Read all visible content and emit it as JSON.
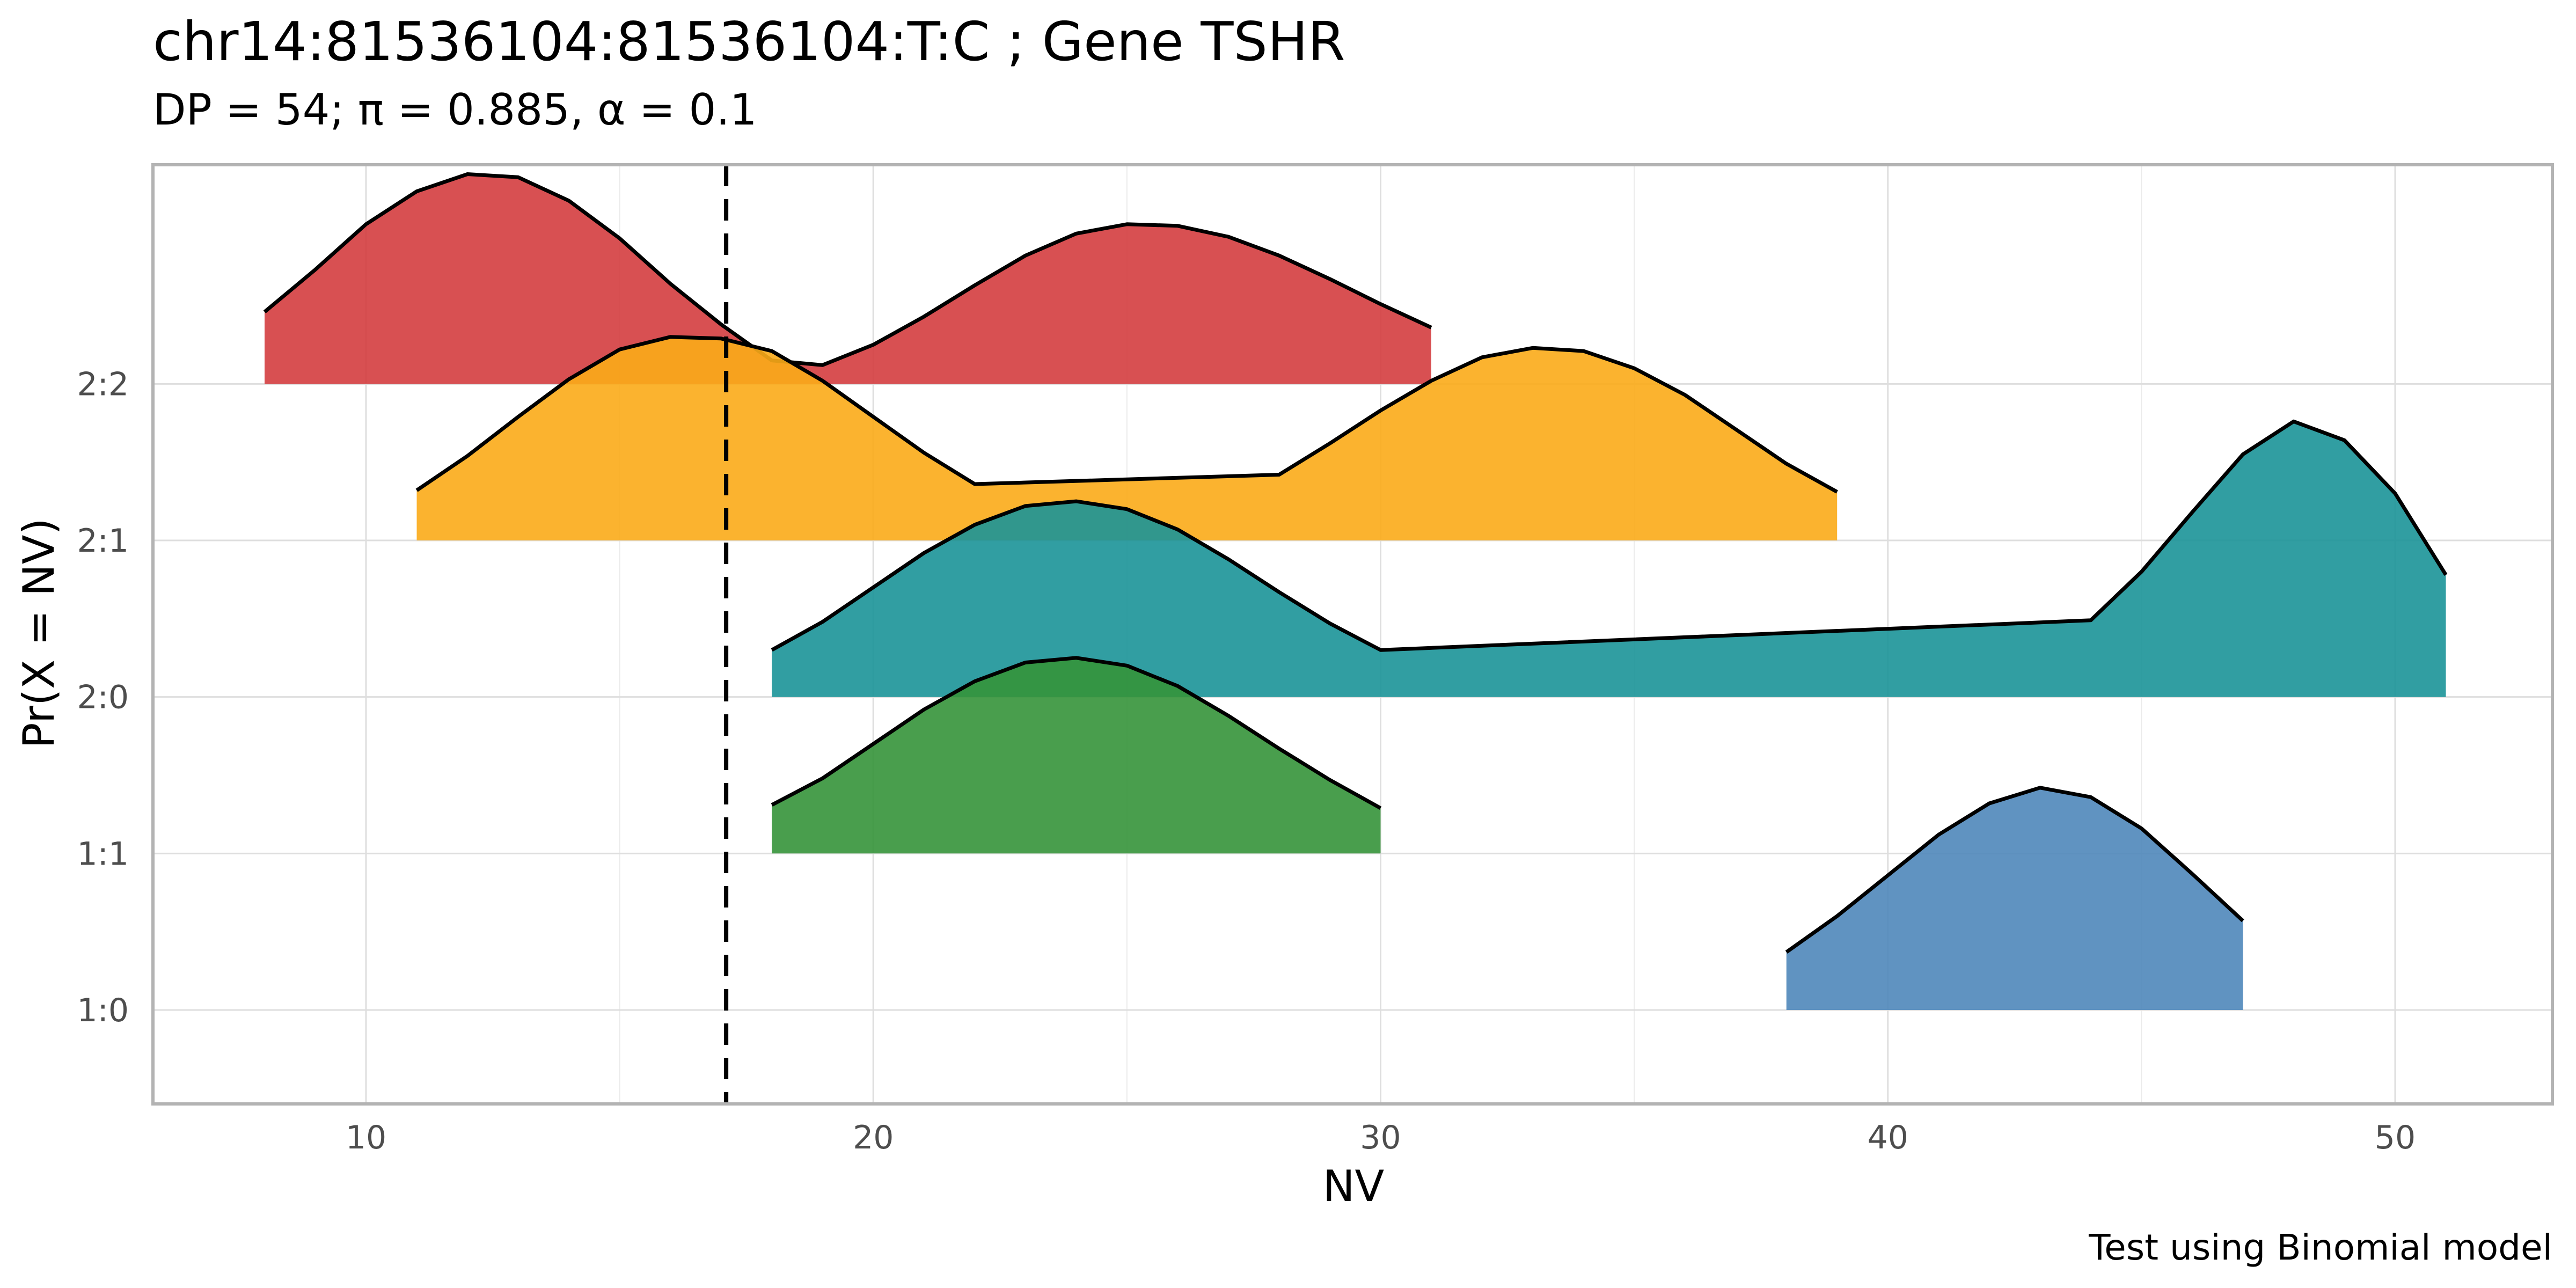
{
  "chart_data": {
    "type": "area",
    "title": "chr14:81536104:81536104:T:C ; Gene TSHR",
    "subtitle": "DP = 54; π = 0.885,  α = 0.1",
    "xlabel": "NV",
    "ylabel": "Pr(X = NV)",
    "caption": "Test using Binomial model",
    "xlim": [
      5.8,
      53.1
    ],
    "ylim": [
      0.4,
      6.4
    ],
    "x_ticks": [
      10,
      20,
      30,
      40,
      50
    ],
    "y_ticks": [
      "1:0",
      "1:1",
      "2:0",
      "2:1",
      "2:2"
    ],
    "grid": true,
    "legend": "none",
    "threshold_line": {
      "x": 17.1,
      "style": "dashed",
      "color": "#000000"
    },
    "series": [
      {
        "baseline": "2:2",
        "color": "#d43d3f",
        "x": [
          8,
          9,
          10,
          11,
          12,
          13,
          14,
          15,
          16,
          17,
          18,
          19,
          20,
          21,
          22,
          23,
          24,
          25,
          26,
          27,
          28,
          29,
          30,
          31
        ],
        "y": [
          5.46,
          5.73,
          6.02,
          6.23,
          6.34,
          6.32,
          6.17,
          5.93,
          5.64,
          5.38,
          5.15,
          5.12,
          5.25,
          5.43,
          5.63,
          5.82,
          5.96,
          6.02,
          6.01,
          5.94,
          5.82,
          5.67,
          5.51,
          5.36
        ]
      },
      {
        "baseline": "2:1",
        "color": "#fbab18",
        "x": [
          11,
          12,
          13,
          14,
          15,
          16,
          17,
          18,
          19,
          20,
          21,
          22,
          28,
          29,
          30,
          31,
          32,
          33,
          34,
          35,
          36,
          37,
          38,
          39
        ],
        "y": [
          4.32,
          4.54,
          4.79,
          5.03,
          5.22,
          5.3,
          5.29,
          5.21,
          5.02,
          4.79,
          4.56,
          4.36,
          4.42,
          4.62,
          4.83,
          5.02,
          5.17,
          5.23,
          5.21,
          5.1,
          4.93,
          4.71,
          4.49,
          4.31
        ]
      },
      {
        "baseline": "2:0",
        "color": "#1b9498",
        "x": [
          18,
          19,
          20,
          21,
          22,
          23,
          24,
          25,
          26,
          27,
          28,
          29,
          30,
          44,
          45,
          46,
          47,
          48,
          49,
          50,
          51
        ],
        "y": [
          3.3,
          3.48,
          3.7,
          3.92,
          4.1,
          4.22,
          4.25,
          4.2,
          4.07,
          3.88,
          3.67,
          3.47,
          3.3,
          3.49,
          3.8,
          4.18,
          4.55,
          4.76,
          4.64,
          4.3,
          3.78
        ]
      },
      {
        "baseline": "1:1",
        "color": "#35933a",
        "x": [
          18,
          19,
          20,
          21,
          22,
          23,
          24,
          25,
          26,
          27,
          28,
          29,
          30
        ],
        "y": [
          2.31,
          2.48,
          2.7,
          2.92,
          3.1,
          3.22,
          3.25,
          3.2,
          3.07,
          2.88,
          2.67,
          2.47,
          2.29
        ]
      },
      {
        "baseline": "1:0",
        "color": "#4f87ba",
        "x": [
          38,
          39,
          40,
          41,
          42,
          43,
          44,
          45,
          46,
          47
        ],
        "y": [
          1.37,
          1.6,
          1.86,
          2.12,
          2.32,
          2.42,
          2.36,
          2.16,
          1.87,
          1.57
        ]
      }
    ]
  }
}
